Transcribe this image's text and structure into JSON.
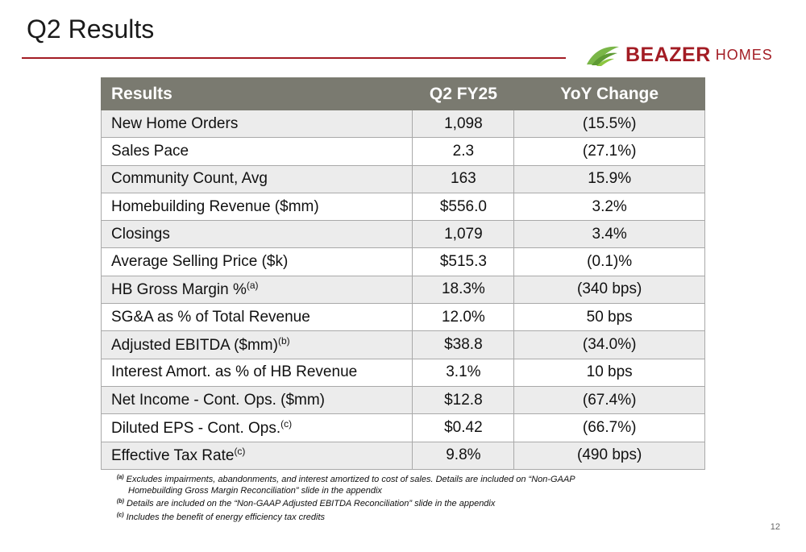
{
  "page": {
    "title": "Q2 Results",
    "page_number": "12",
    "accent_color": "#a31c24"
  },
  "logo": {
    "brand": "BEAZER",
    "brand_suffix": "HOMES",
    "icon": "leaf-icon",
    "leaf_color": "#7ab648"
  },
  "table": {
    "headers": [
      "Results",
      "Q2 FY25",
      "YoY Change"
    ],
    "header_color": "#7a7a70",
    "rows": [
      {
        "label": "New Home Orders",
        "sup": "",
        "value": "1,098",
        "change": "(15.5%)"
      },
      {
        "label": "Sales Pace",
        "sup": "",
        "value": "2.3",
        "change": "(27.1%)"
      },
      {
        "label": "Community Count, Avg",
        "sup": "",
        "value": "163",
        "change": "15.9%"
      },
      {
        "label": "Homebuilding Revenue ($mm)",
        "sup": "",
        "value": "$556.0",
        "change": "3.2%"
      },
      {
        "label": "Closings",
        "sup": "",
        "value": "1,079",
        "change": "3.4%"
      },
      {
        "label": "Average Selling Price ($k)",
        "sup": "",
        "value": "$515.3",
        "change": "(0.1)%"
      },
      {
        "label": "HB Gross Margin %",
        "sup": "(a)",
        "value": "18.3%",
        "change": "(340 bps)"
      },
      {
        "label": "SG&A as % of Total Revenue",
        "sup": "",
        "value": "12.0%",
        "change": "50 bps"
      },
      {
        "label": "Adjusted EBITDA ($mm)",
        "sup": "(b)",
        "value": "$38.8",
        "change": "(34.0%)"
      },
      {
        "label": "Interest Amort. as % of HB Revenue",
        "sup": "",
        "value": "3.1%",
        "change": "10 bps"
      },
      {
        "label": "Net Income - Cont. Ops. ($mm)",
        "sup": "",
        "value": "$12.8",
        "change": "(67.4%)"
      },
      {
        "label": "Diluted EPS - Cont. Ops.",
        "sup": "(c)",
        "value": "$0.42",
        "change": "(66.7%)"
      },
      {
        "label": "Effective Tax Rate",
        "sup": "(c)",
        "value": "9.8%",
        "change": "(490 bps)"
      }
    ]
  },
  "footnotes": {
    "a_marker": "(a)",
    "a_line1": "Excludes impairments, abandonments, and interest amortized to cost of sales. Details are included on “Non-GAAP",
    "a_line2": "Homebuilding Gross Margin Reconciliation” slide in the appendix",
    "b_marker": "(b)",
    "b_text": "Details are included on the “Non-GAAP Adjusted EBITDA Reconciliation” slide in the appendix",
    "c_marker": "(c)",
    "c_text": "Includes the benefit of energy efficiency tax credits"
  }
}
